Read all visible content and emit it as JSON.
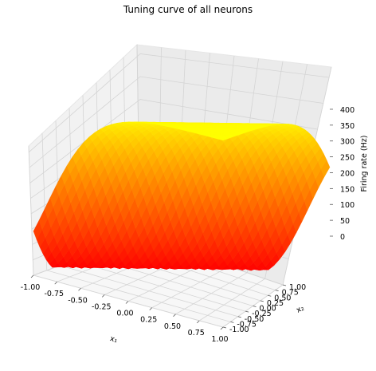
{
  "chart_data": {
    "type": "surface3d",
    "title": "Tuning curve of all neurons",
    "xlabel": "x₁",
    "ylabel": "x₂",
    "zlabel": "Firing rate (Hz)",
    "xlim": [
      -1.0,
      1.0
    ],
    "ylim": [
      -1.0,
      1.0
    ],
    "zlim": [
      0,
      420
    ],
    "xticks": [
      "-1.00",
      "-0.75",
      "-0.50",
      "-0.25",
      "0.00",
      "0.25",
      "0.50",
      "0.75",
      "1.00"
    ],
    "yticks": [
      "-1.00",
      "-0.75",
      "-0.50",
      "-0.25",
      "0.00",
      "0.25",
      "0.50",
      "0.75",
      "1.00"
    ],
    "zticks": [
      "0",
      "50",
      "100",
      "150",
      "200",
      "250",
      "300",
      "350",
      "400"
    ],
    "colormap": "autumn",
    "colormap_colors": [
      "#ff0000",
      "#ffff00"
    ],
    "grid": true,
    "pane_color": "#f2f2f2",
    "x": [
      -1.0,
      -0.75,
      -0.5,
      -0.25,
      0.0,
      0.25,
      0.5,
      0.75,
      1.0
    ],
    "y": [
      -1.0,
      -0.75,
      -0.5,
      -0.25,
      0.0,
      0.25,
      0.5,
      0.75,
      1.0
    ],
    "z_max": 410,
    "z_min": 0
  }
}
